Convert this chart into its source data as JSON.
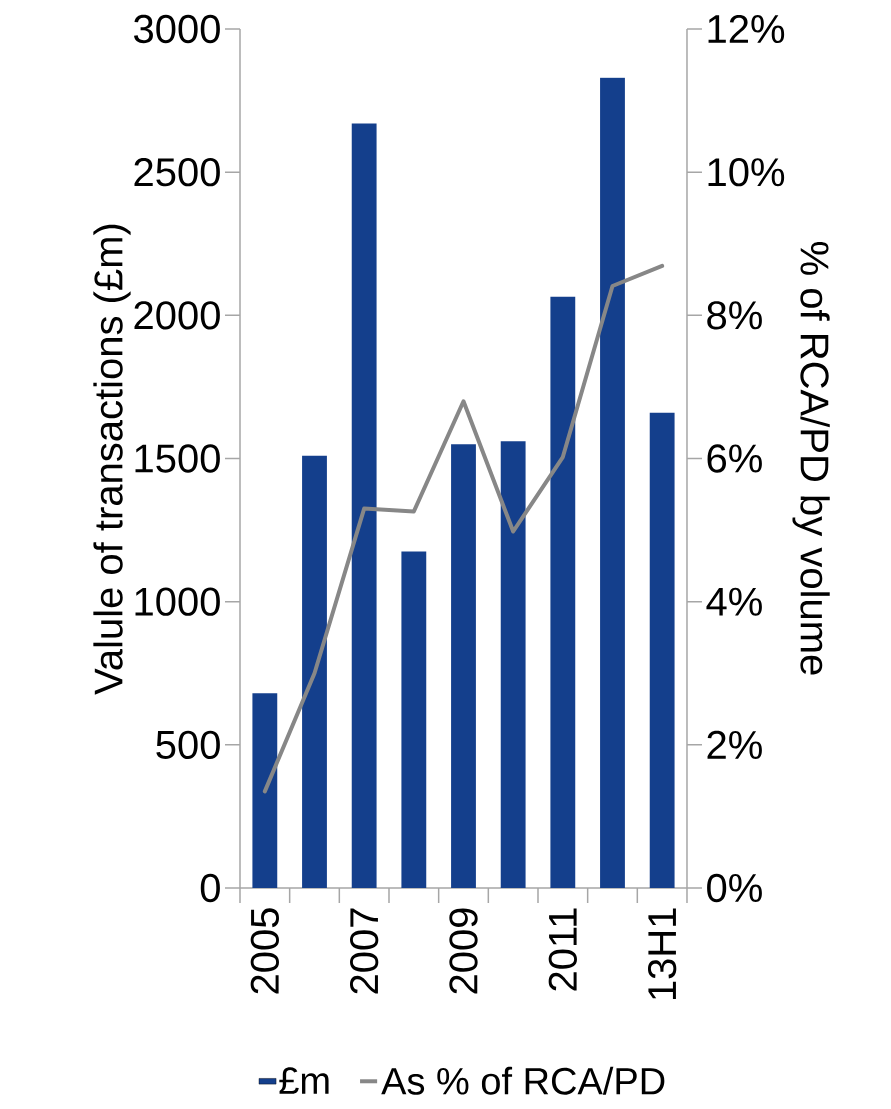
{
  "chart_data": {
    "type": "bar",
    "categories": [
      "2005",
      null,
      "2007",
      null,
      "2009",
      null,
      "2011",
      null,
      "13H1"
    ],
    "series": [
      {
        "name": "£m",
        "color": "#143f8c",
        "values": [
          680,
          1510,
          2670,
          1175,
          1550,
          1560,
          2065,
          2830,
          1660
        ]
      },
      {
        "name": "As % of RCA/PD",
        "type": "line",
        "axis": "y2",
        "color": "#878787",
        "values": [
          1.35,
          3.0,
          5.3,
          5.26,
          6.8,
          4.98,
          6.02,
          8.41,
          8.69
        ]
      }
    ],
    "ylabel": "Valule of transactions (£m)",
    "y2label": "% of RCA/PD by volume",
    "ylim": [
      0,
      3000
    ],
    "yticks": [
      0,
      500,
      1000,
      1500,
      2000,
      2500,
      3000
    ],
    "y2lim": [
      0,
      12
    ],
    "y2ticks": [
      {
        "value": 0,
        "label": "0%"
      },
      {
        "value": 2,
        "label": "2%"
      },
      {
        "value": 4,
        "label": "4%"
      },
      {
        "value": 6,
        "label": "6%"
      },
      {
        "value": 8,
        "label": "8%"
      },
      {
        "value": 10,
        "label": "10%"
      },
      {
        "value": 12,
        "label": "12%"
      }
    ],
    "legend": "bottom"
  }
}
